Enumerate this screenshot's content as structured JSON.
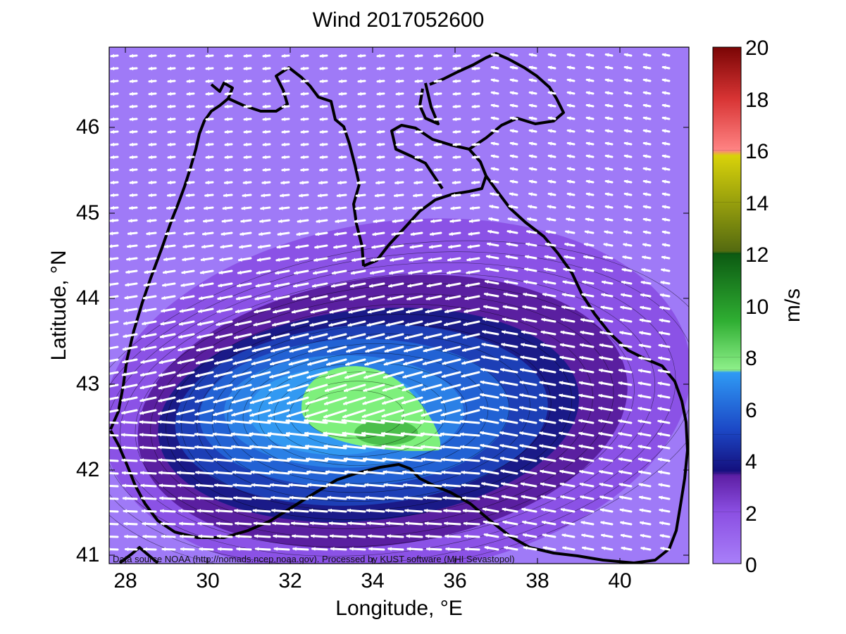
{
  "title": "Wind 2017052600",
  "xlabel": "Longitude, °E",
  "ylabel": "Latitude, °N",
  "colorbar_label": "m/s",
  "credit": "Data source NOAA (http://nomads.ncep.noaa.gov). Processed by KUST software (MHI Sevastopol)",
  "xticks": [
    "28",
    "30",
    "32",
    "34",
    "36",
    "38",
    "40"
  ],
  "yticks": [
    "41",
    "42",
    "43",
    "44",
    "45",
    "46"
  ],
  "cticks": [
    "0",
    "2",
    "4",
    "6",
    "8",
    "10",
    "12",
    "14",
    "16",
    "18",
    "20"
  ],
  "map": {
    "lon_range": [
      27.45,
      41.75
    ],
    "lat_range": [
      40.9,
      46.95
    ],
    "speed_range": [
      0,
      20
    ],
    "color_stops": [
      {
        "speed": 0,
        "color": "#9f7af7"
      },
      {
        "speed": 2,
        "color": "#8b4fe2"
      },
      {
        "speed": 3.5,
        "color": "#5e1fa5"
      },
      {
        "speed": 4,
        "color": "#14107e"
      },
      {
        "speed": 5,
        "color": "#1c48c6"
      },
      {
        "speed": 7.5,
        "color": "#2f9af4"
      },
      {
        "speed": 8,
        "color": "#7ef07c"
      },
      {
        "speed": 12,
        "color": "#1f8a1f"
      },
      {
        "speed": 14,
        "color": "#8e7a0a"
      },
      {
        "speed": 16,
        "color": "#fff23a"
      },
      {
        "speed": 20,
        "color": "#8e0707"
      }
    ],
    "wind_core": {
      "lon": 33.5,
      "lat": 42.6,
      "peak_speed": 9.5
    }
  }
}
